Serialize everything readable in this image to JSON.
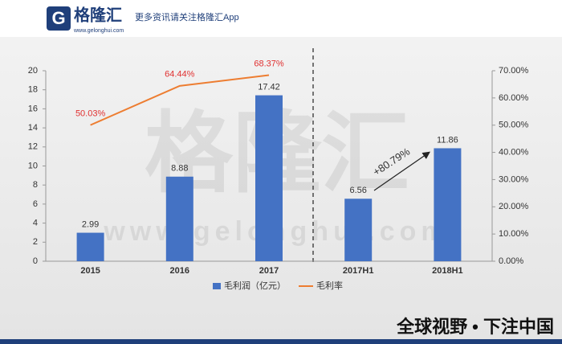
{
  "header": {
    "logo": "格隆汇",
    "url": "www.gelonghui.com",
    "slogan": "更多资讯请关注格隆汇App"
  },
  "watermark": {
    "logo": "格隆汇",
    "url": "www.gelonghui.com"
  },
  "footer": {
    "text": "全球视野 • 下注中国"
  },
  "chart_data": {
    "type": "bar",
    "categories": [
      "2015",
      "2016",
      "2017",
      "2017H1",
      "2018H1"
    ],
    "series": [
      {
        "name": "毛利润（亿元）",
        "color": "#4472c4",
        "values": [
          2.99,
          8.88,
          17.42,
          6.56,
          11.86
        ]
      },
      {
        "name": "毛利率",
        "color": "#ed7d31",
        "axis": "y2",
        "values": [
          50.03,
          64.44,
          68.37,
          null,
          null
        ],
        "value_labels": [
          "50.03%",
          "64.44%",
          "68.37%",
          null,
          null
        ]
      }
    ],
    "ylim": [
      0,
      20
    ],
    "yticks": [
      0,
      2,
      4,
      6,
      8,
      10,
      12,
      14,
      16,
      18,
      20
    ],
    "y2lim": [
      0,
      70
    ],
    "y2ticks": [
      {
        "value": 0,
        "label": "0.00%"
      },
      {
        "value": 10,
        "label": "10.00%"
      },
      {
        "value": 20,
        "label": "20.00%"
      },
      {
        "value": 30,
        "label": "30.00%"
      },
      {
        "value": 40,
        "label": "40.00%"
      },
      {
        "value": 50,
        "label": "50.00%"
      },
      {
        "value": 60,
        "label": "60.00%"
      },
      {
        "value": 70,
        "label": "70.00%"
      }
    ],
    "annotation": "+80.79%",
    "legend": "bottom"
  }
}
